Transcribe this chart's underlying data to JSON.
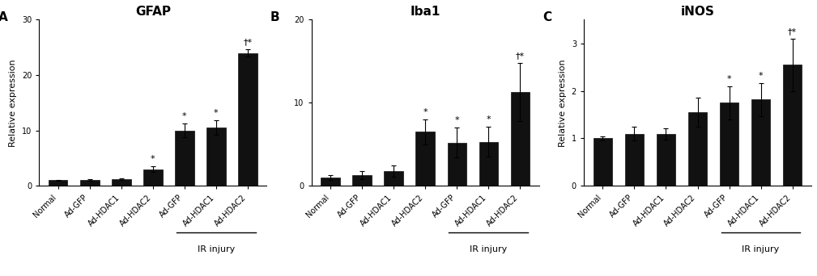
{
  "panels": [
    {
      "label": "A",
      "title": "GFAP",
      "ylabel": "Relative expression",
      "ylim": [
        0,
        30
      ],
      "yticks": [
        0,
        10,
        20,
        30
      ],
      "categories": [
        "Normal",
        "Ad-GFP",
        "Ad-HDAC1",
        "Ad-HDAC2",
        "Ad-GFP",
        "Ad-HDAC1",
        "Ad-HDAC2"
      ],
      "values": [
        1.0,
        1.1,
        1.2,
        3.0,
        10.0,
        10.5,
        24.0
      ],
      "errors": [
        0.1,
        0.15,
        0.2,
        0.5,
        1.2,
        1.3,
        0.7
      ],
      "annotations": [
        "",
        "",
        "",
        "*",
        "*",
        "*",
        "†*"
      ],
      "ir_injury_range": [
        4,
        6
      ],
      "ir_injury_label": "IR injury"
    },
    {
      "label": "B",
      "title": "Iba1",
      "ylabel": "",
      "ylim": [
        0,
        20
      ],
      "yticks": [
        0,
        10,
        20
      ],
      "categories": [
        "Normal",
        "Ad-GFP",
        "Ad-HDAC1",
        "Ad-HDAC2",
        "Ad-GFP",
        "Ad-HDAC1",
        "Ad-HDAC2"
      ],
      "values": [
        1.0,
        1.3,
        1.8,
        6.5,
        5.2,
        5.3,
        11.3
      ],
      "errors": [
        0.3,
        0.5,
        0.7,
        1.5,
        1.8,
        1.8,
        3.5
      ],
      "annotations": [
        "",
        "",
        "",
        "*",
        "*",
        "*",
        "†*"
      ],
      "ir_injury_range": [
        4,
        6
      ],
      "ir_injury_label": "IR injury"
    },
    {
      "label": "C",
      "title": "iNOS",
      "ylabel": "Relative expression",
      "ylim": [
        0,
        3.5
      ],
      "yticks": [
        0,
        1,
        2,
        3
      ],
      "categories": [
        "Normal",
        "Ad-GFP",
        "Ad-HDAC1",
        "Ad-HDAC2",
        "Ad-GFP",
        "Ad-HDAC1",
        "Ad-HDAC2"
      ],
      "values": [
        1.0,
        1.1,
        1.1,
        1.55,
        1.75,
        1.82,
        2.55
      ],
      "errors": [
        0.05,
        0.15,
        0.12,
        0.3,
        0.35,
        0.35,
        0.55
      ],
      "annotations": [
        "",
        "",
        "",
        "",
        "*",
        "*",
        "†*"
      ],
      "ir_injury_range": [
        4,
        6
      ],
      "ir_injury_label": "IR injury"
    }
  ],
  "bar_color": "#111111",
  "bar_width": 0.6,
  "fontsize_title": 11,
  "fontsize_ylabel": 8,
  "fontsize_tick": 7,
  "fontsize_annot": 8,
  "fontsize_panel_label": 11
}
